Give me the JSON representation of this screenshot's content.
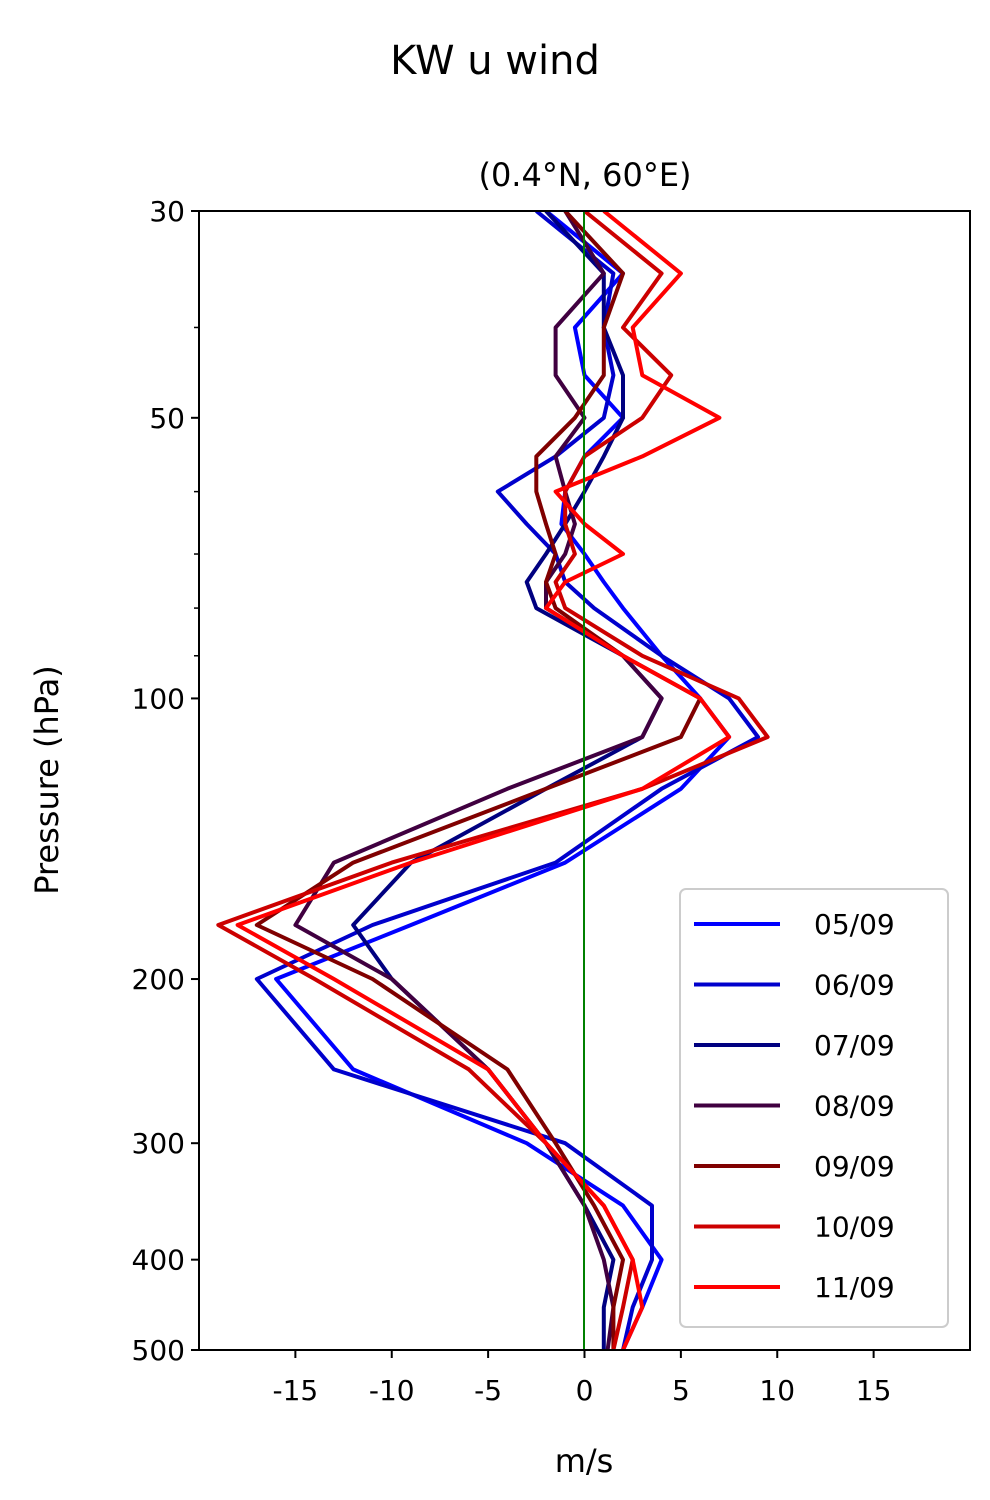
{
  "chart_data": {
    "type": "line",
    "title": "KW u wind",
    "subtitle": "(0.4°N, 60°E)",
    "xlabel": "m/s",
    "ylabel": "Pressure (hPa)",
    "xlim": [
      -20,
      20
    ],
    "ylim": [
      500,
      30
    ],
    "yscale": "log",
    "xticks": [
      -15,
      -10,
      -5,
      0,
      5,
      10,
      15
    ],
    "xtick_labels": [
      "-15",
      "-10",
      "-5",
      "0",
      "5",
      "10",
      "15"
    ],
    "yticks": [
      30,
      50,
      100,
      200,
      300,
      400,
      500
    ],
    "ytick_labels": [
      "30",
      "50",
      "100",
      "200",
      "300",
      "400",
      "500"
    ],
    "y_minor_ticks": [
      40,
      60,
      70,
      80,
      90
    ],
    "zero_line_color": "#008000",
    "legend_location": "lower-right",
    "pressure_levels": [
      30,
      35,
      40,
      45,
      50,
      55,
      60,
      65,
      70,
      75,
      80,
      90,
      100,
      110,
      125,
      150,
      175,
      200,
      250,
      300,
      350,
      400,
      450,
      500
    ],
    "series": [
      {
        "name": "05/09",
        "color": "#0000ff",
        "values": [
          -2,
          2,
          -0.5,
          0,
          2,
          0,
          -1,
          -1.2,
          0,
          1,
          2,
          4,
          6,
          7.5,
          5,
          -1,
          -9,
          -16,
          -12,
          -3,
          2,
          4,
          3,
          2
        ]
      },
      {
        "name": "06/09",
        "color": "#0000cc",
        "values": [
          -2.5,
          1.5,
          1,
          1.5,
          1,
          -1.5,
          -4.5,
          -3,
          -1.5,
          -1,
          0.5,
          4,
          7.5,
          9,
          4,
          -1.5,
          -11,
          -17,
          -13,
          -1,
          3.5,
          3.5,
          2.5,
          2
        ]
      },
      {
        "name": "07/09",
        "color": "#000080",
        "values": [
          -2,
          1,
          1,
          2,
          2,
          1,
          0,
          -1,
          -2,
          -3,
          -2.5,
          2,
          4,
          3,
          -2,
          -9,
          -12,
          -10,
          -5,
          -2,
          0,
          1.5,
          1,
          1
        ]
      },
      {
        "name": "08/09",
        "color": "#400040",
        "values": [
          -1,
          1,
          -1.5,
          -1.5,
          0,
          -1.5,
          -1,
          -0.5,
          -1,
          -2,
          -2,
          2,
          4,
          3,
          -4,
          -13,
          -15,
          -10,
          -5,
          -2,
          0,
          1,
          1.5,
          1.2
        ]
      },
      {
        "name": "09/09",
        "color": "#800000",
        "values": [
          -1,
          2,
          1,
          1,
          -0.5,
          -2.5,
          -2.5,
          -2,
          -1.5,
          -2,
          -1.5,
          2,
          6,
          5,
          -2,
          -12,
          -17,
          -11,
          -4,
          -1.5,
          0.5,
          2,
          1.5,
          1.5
        ]
      },
      {
        "name": "10/09",
        "color": "#cc0000",
        "values": [
          0,
          4,
          2,
          4.5,
          3,
          0,
          -1,
          -1,
          -0.5,
          -1.5,
          -1,
          3,
          8,
          9.5,
          3,
          -10,
          -19,
          -14,
          -6,
          -2,
          1,
          2.5,
          2,
          1.5
        ]
      },
      {
        "name": "11/09",
        "color": "#ff0000",
        "values": [
          1,
          5,
          2.5,
          3,
          7,
          3,
          -1.5,
          0,
          2,
          -1,
          -2,
          2,
          6,
          7.5,
          3,
          -9,
          -18,
          -13,
          -5,
          -2,
          1,
          2.5,
          3,
          2
        ]
      }
    ]
  }
}
